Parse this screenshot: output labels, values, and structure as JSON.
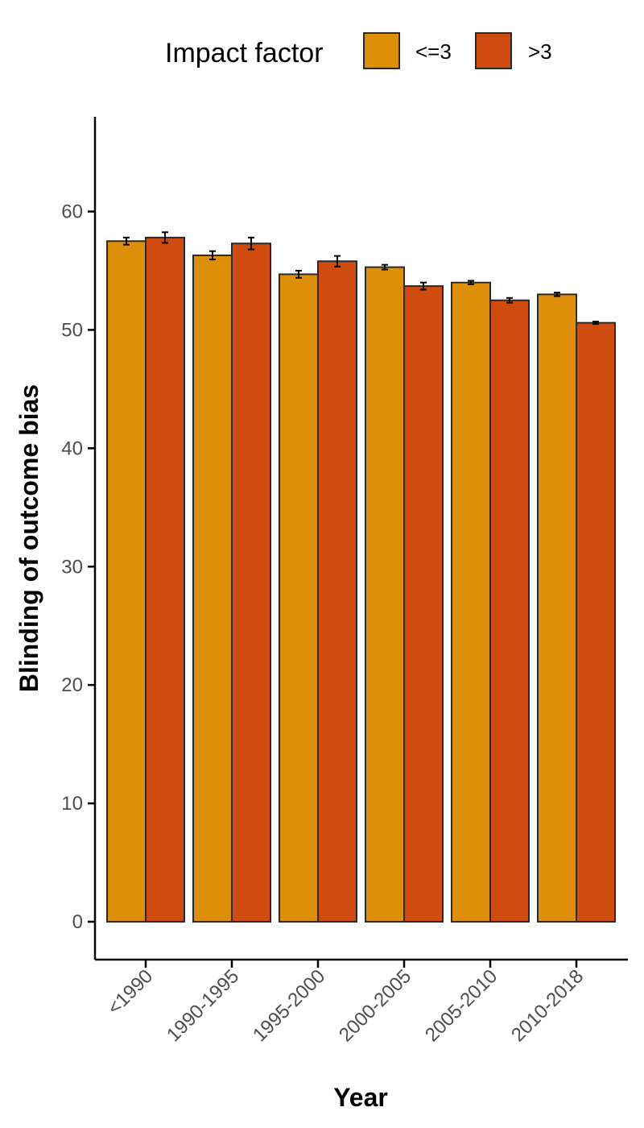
{
  "chart_data": {
    "type": "bar",
    "xlabel": "Year",
    "ylabel": "Blinding of outcome bias",
    "categories": [
      "<1990",
      "1990-1995",
      "1995-2000",
      "2000-2005",
      "2005-2010",
      "2010-2018"
    ],
    "series": [
      {
        "name": "<=3",
        "color": "#DE8F09",
        "values": [
          57.5,
          56.3,
          54.7,
          55.3,
          54.0,
          53.0
        ],
        "errors": [
          0.3,
          0.35,
          0.3,
          0.2,
          0.15,
          0.15
        ]
      },
      {
        "name": ">3",
        "color": "#CF4B10",
        "values": [
          57.8,
          57.3,
          55.8,
          53.7,
          52.5,
          50.6
        ],
        "errors": [
          0.45,
          0.5,
          0.45,
          0.3,
          0.2,
          0.1
        ]
      }
    ],
    "ylim": [
      -3.2,
      68
    ],
    "yticks": [
      0,
      10,
      20,
      30,
      40,
      50,
      60
    ],
    "legend": {
      "title": "Impact factor",
      "position": "top"
    }
  }
}
